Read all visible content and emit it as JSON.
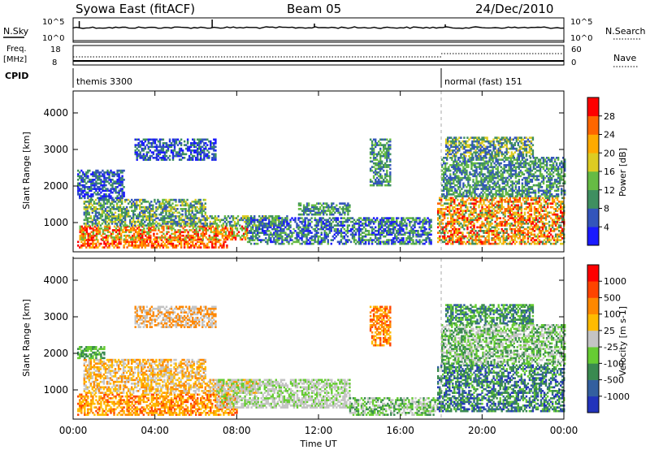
{
  "header": {
    "station": "Syowa East (fitACF)",
    "beam": "Beam 05",
    "date": "24/Dec/2010"
  },
  "strips": {
    "nsky_label": "N.Sky",
    "nsky_ticks": [
      "10^5",
      "10^0"
    ],
    "nsearch_label": "N.Search",
    "nsearch_ticks": [
      "10^5",
      "10^0"
    ],
    "freq_label_1": "Freq.",
    "freq_label_2": "[MHz]",
    "freq_ticks": [
      "18",
      "8"
    ],
    "nave_label": "Nave",
    "nave_ticks": [
      "60",
      "0"
    ],
    "cpid_label": "CPID",
    "cpid_segments": [
      {
        "label": "themis 3300",
        "start_hour": 0
      },
      {
        "label": "normal (fast) 151",
        "start_hour": 18
      }
    ]
  },
  "chart_data": [
    {
      "type": "heatmap",
      "panel": "power",
      "ylabel": "Slant Range [km]",
      "ylim": [
        200,
        4600
      ],
      "yticks": [
        "1000",
        "2000",
        "3000",
        "4000"
      ],
      "colorbar_label": "Power [dB]",
      "colorbar_ticks": [
        "4",
        "8",
        "12",
        "16",
        "20",
        "24",
        "28"
      ],
      "colors": [
        "#1a1aff",
        "#3355bb",
        "#3f8f60",
        "#66bb44",
        "#ddcc22",
        "#ffaa00",
        "#ff6600",
        "#ff0000"
      ],
      "regions": [
        {
          "t0": 0.2,
          "t1": 7.5,
          "r0": 300,
          "r1": 520,
          "colors": [
            6,
            7,
            5
          ]
        },
        {
          "t0": 0.3,
          "t1": 8.5,
          "r0": 520,
          "r1": 900,
          "colors": [
            5,
            6,
            7,
            3
          ]
        },
        {
          "t0": 0.5,
          "t1": 10.5,
          "r0": 900,
          "r1": 1200,
          "colors": [
            3,
            4,
            1,
            2
          ]
        },
        {
          "t0": 0.5,
          "t1": 6.5,
          "r0": 1200,
          "r1": 1650,
          "colors": [
            2,
            3,
            4,
            1
          ]
        },
        {
          "t0": 0.2,
          "t1": 2.5,
          "r0": 1650,
          "r1": 2450,
          "colors": [
            0,
            1,
            2
          ]
        },
        {
          "t0": 8.5,
          "t1": 17.5,
          "r0": 400,
          "r1": 1150,
          "colors": [
            1,
            2,
            0,
            3
          ]
        },
        {
          "t0": 11.0,
          "t1": 13.5,
          "r0": 1200,
          "r1": 1550,
          "colors": [
            1,
            2,
            3
          ]
        },
        {
          "t0": 17.8,
          "t1": 24.0,
          "r0": 400,
          "r1": 1700,
          "colors": [
            5,
            6,
            4,
            2,
            7
          ]
        },
        {
          "t0": 18.0,
          "t1": 24.0,
          "r0": 1700,
          "r1": 2800,
          "colors": [
            1,
            2,
            3
          ]
        },
        {
          "t0": 18.2,
          "t1": 22.5,
          "r0": 2800,
          "r1": 3350,
          "colors": [
            1,
            2,
            4
          ]
        },
        {
          "t0": 14.5,
          "t1": 15.5,
          "r0": 2000,
          "r1": 3300,
          "colors": [
            2,
            1,
            3
          ]
        },
        {
          "t0": 3.0,
          "t1": 7.0,
          "r0": 2700,
          "r1": 3300,
          "colors": [
            0,
            1,
            2
          ]
        }
      ]
    },
    {
      "type": "heatmap",
      "panel": "velocity",
      "ylabel": "Slant Range [km]",
      "ylim": [
        200,
        4600
      ],
      "yticks": [
        "1000",
        "2000",
        "3000",
        "4000"
      ],
      "xlabel": "Time UT",
      "xticks": [
        "00:00",
        "04:00",
        "08:00",
        "12:00",
        "16:00",
        "20:00",
        "00:00"
      ],
      "colorbar_label": "Velocity [m s-1]",
      "colorbar_ticks": [
        "1000",
        "500",
        "100",
        "25",
        "-25",
        "-100",
        "-500",
        "-1000"
      ],
      "colors": [
        "#2233bb",
        "#335f9f",
        "#3a8a50",
        "#66cc33",
        "#c4c4c4",
        "#ffbb00",
        "#ff8800",
        "#ff4400",
        "#ff0000"
      ],
      "regions": [
        {
          "t0": 0.2,
          "t1": 8.0,
          "r0": 300,
          "r1": 900,
          "colors": [
            5,
            6,
            5,
            7
          ]
        },
        {
          "t0": 0.5,
          "t1": 9.0,
          "r0": 900,
          "r1": 1300,
          "colors": [
            5,
            6,
            4
          ]
        },
        {
          "t0": 0.5,
          "t1": 6.5,
          "r0": 1300,
          "r1": 1850,
          "colors": [
            4,
            5,
            6
          ]
        },
        {
          "t0": 0.2,
          "t1": 1.5,
          "r0": 1850,
          "r1": 2200,
          "colors": [
            3,
            2
          ]
        },
        {
          "t0": 7.0,
          "t1": 13.5,
          "r0": 500,
          "r1": 1300,
          "colors": [
            4,
            4,
            3
          ]
        },
        {
          "t0": 13.5,
          "t1": 17.8,
          "r0": 300,
          "r1": 800,
          "colors": [
            3,
            2,
            4
          ]
        },
        {
          "t0": 17.8,
          "t1": 24.0,
          "r0": 400,
          "r1": 1700,
          "colors": [
            2,
            1,
            2,
            3,
            0
          ]
        },
        {
          "t0": 18.0,
          "t1": 24.0,
          "r0": 1700,
          "r1": 2800,
          "colors": [
            3,
            2,
            4
          ]
        },
        {
          "t0": 18.2,
          "t1": 22.5,
          "r0": 2800,
          "r1": 3350,
          "colors": [
            2,
            3,
            1
          ]
        },
        {
          "t0": 14.5,
          "t1": 15.5,
          "r0": 2200,
          "r1": 3300,
          "colors": [
            6,
            7,
            5
          ]
        },
        {
          "t0": 3.0,
          "t1": 7.0,
          "r0": 2700,
          "r1": 3300,
          "colors": [
            4,
            6
          ]
        }
      ]
    }
  ]
}
